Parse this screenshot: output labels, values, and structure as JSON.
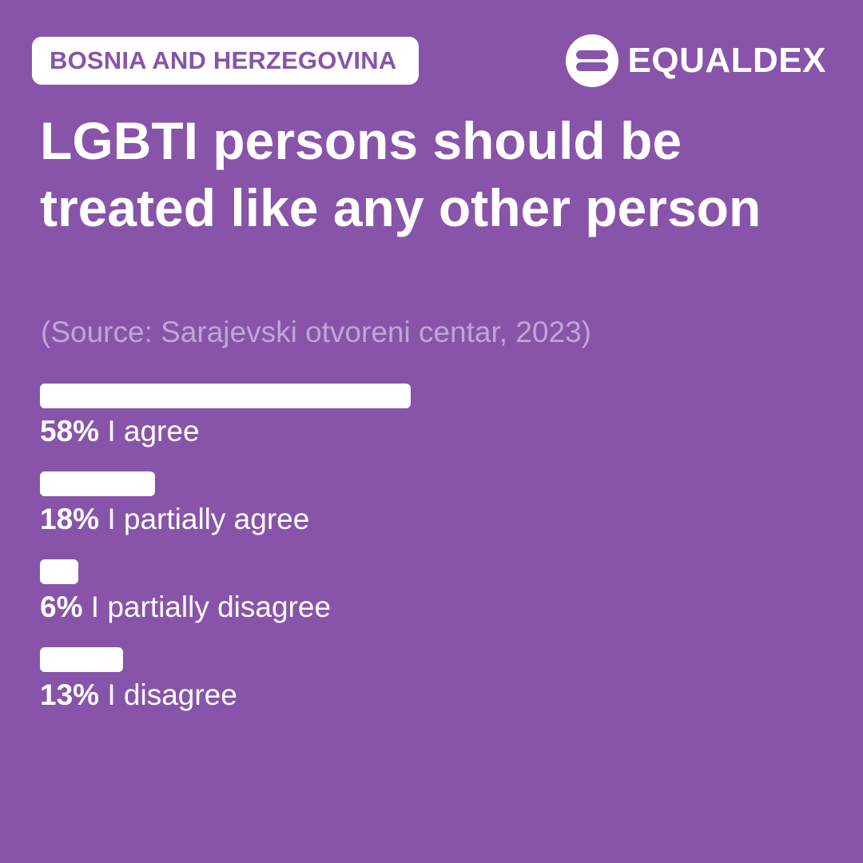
{
  "header": {
    "country": "BOSNIA AND HERZEGOVINA",
    "brand": "EQUALDEX",
    "brand_icon": "equaldex-logo-icon"
  },
  "colors": {
    "background": "#8854a9",
    "bar": "#ffffff",
    "source_text": "#c0a5d8"
  },
  "chart_data": {
    "type": "bar",
    "orientation": "horizontal",
    "title": "LGBTI persons should be treated like any other person",
    "subtitle": "(Source: Sarajevski otvoreni centar, 2023)",
    "categories": [
      "I agree",
      "I partially agree",
      "I partially disagree",
      "I disagree"
    ],
    "values": [
      58,
      18,
      6,
      13
    ],
    "value_labels": [
      "58%",
      "18%",
      "6%",
      "13%"
    ],
    "unit": "%",
    "xlim": [
      0,
      100
    ],
    "grid": false
  }
}
